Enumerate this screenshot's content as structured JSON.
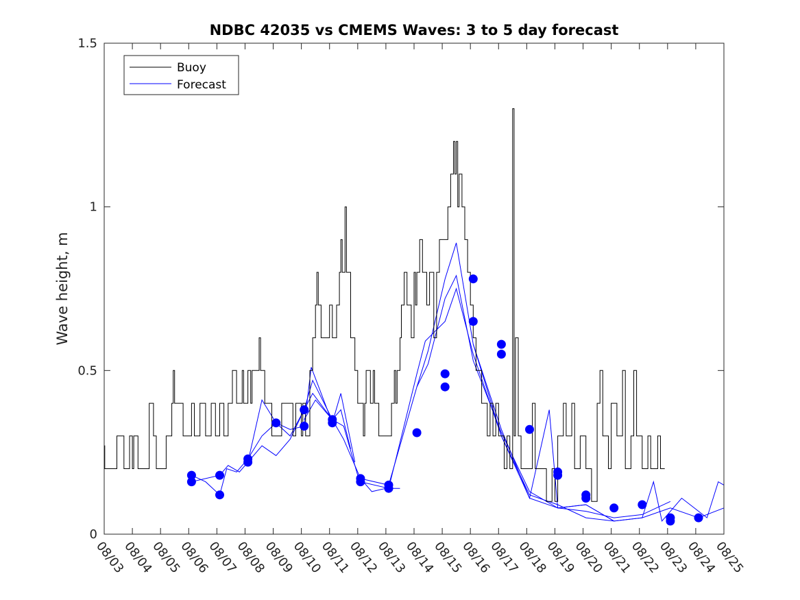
{
  "chart_data": {
    "type": "line",
    "title": "NDBC 42035 vs CMEMS Waves: 3 to 5 day forecast",
    "xlabel": "",
    "ylabel": "Wave height, m",
    "xlim": [
      0,
      22
    ],
    "ylim": [
      0,
      1.5
    ],
    "grid": false,
    "legend_position": "top-left",
    "x_tick_labels": [
      "08/03",
      "08/04",
      "08/05",
      "08/06",
      "08/07",
      "08/08",
      "08/09",
      "08/10",
      "08/11",
      "08/12",
      "08/13",
      "08/14",
      "08/15",
      "08/16",
      "08/17",
      "08/18",
      "08/19",
      "08/20",
      "08/21",
      "08/22",
      "08/23",
      "08/24",
      "08/25"
    ],
    "y_ticks": [
      0,
      0.5,
      1,
      1.5
    ],
    "y_tick_labels": [
      "0",
      "0.5",
      "1",
      "1.5"
    ],
    "legend": [
      {
        "name": "Buoy",
        "color": "#000000"
      },
      {
        "name": "Forecast",
        "color": "#0000ff"
      }
    ],
    "series": [
      {
        "name": "Buoy",
        "color": "#000000",
        "step": true,
        "points": [
          [
            0,
            0.27
          ],
          [
            0.02,
            0.2
          ],
          [
            0.35,
            0.2
          ],
          [
            0.45,
            0.3
          ],
          [
            0.7,
            0.2
          ],
          [
            0.9,
            0.3
          ],
          [
            1.0,
            0.2
          ],
          [
            1.05,
            0.3
          ],
          [
            1.2,
            0.2
          ],
          [
            1.6,
            0.4
          ],
          [
            1.75,
            0.3
          ],
          [
            1.85,
            0.2
          ],
          [
            2.2,
            0.3
          ],
          [
            2.4,
            0.4
          ],
          [
            2.45,
            0.5
          ],
          [
            2.5,
            0.4
          ],
          [
            2.8,
            0.3
          ],
          [
            3.1,
            0.4
          ],
          [
            3.2,
            0.3
          ],
          [
            3.4,
            0.4
          ],
          [
            3.6,
            0.3
          ],
          [
            3.8,
            0.4
          ],
          [
            3.95,
            0.3
          ],
          [
            4.1,
            0.4
          ],
          [
            4.25,
            0.3
          ],
          [
            4.4,
            0.4
          ],
          [
            4.55,
            0.5
          ],
          [
            4.7,
            0.4
          ],
          [
            4.9,
            0.5
          ],
          [
            4.95,
            0.4
          ],
          [
            5.1,
            0.5
          ],
          [
            5.2,
            0.4
          ],
          [
            5.25,
            0.5
          ],
          [
            5.4,
            0.5
          ],
          [
            5.5,
            0.6
          ],
          [
            5.55,
            0.5
          ],
          [
            5.7,
            0.4
          ],
          [
            5.95,
            0.3
          ],
          [
            6.3,
            0.4
          ],
          [
            6.7,
            0.3
          ],
          [
            6.8,
            0.4
          ],
          [
            7.0,
            0.3
          ],
          [
            7.05,
            0.4
          ],
          [
            7.15,
            0.3
          ],
          [
            7.3,
            0.5
          ],
          [
            7.4,
            0.6
          ],
          [
            7.5,
            0.7
          ],
          [
            7.55,
            0.8
          ],
          [
            7.6,
            0.7
          ],
          [
            7.7,
            0.6
          ],
          [
            8.0,
            0.7
          ],
          [
            8.1,
            0.6
          ],
          [
            8.25,
            0.7
          ],
          [
            8.35,
            0.8
          ],
          [
            8.4,
            0.9
          ],
          [
            8.45,
            0.8
          ],
          [
            8.55,
            1.0
          ],
          [
            8.6,
            0.8
          ],
          [
            8.75,
            0.6
          ],
          [
            8.9,
            0.5
          ],
          [
            9.0,
            0.4
          ],
          [
            9.2,
            0.3
          ],
          [
            9.25,
            0.4
          ],
          [
            9.3,
            0.5
          ],
          [
            9.45,
            0.4
          ],
          [
            9.55,
            0.5
          ],
          [
            9.6,
            0.4
          ],
          [
            9.75,
            0.3
          ],
          [
            10.0,
            0.3
          ],
          [
            10.2,
            0.4
          ],
          [
            10.3,
            0.5
          ],
          [
            10.35,
            0.4
          ],
          [
            10.4,
            0.5
          ],
          [
            10.5,
            0.6
          ],
          [
            10.55,
            0.7
          ],
          [
            10.65,
            0.8
          ],
          [
            10.75,
            0.7
          ],
          [
            10.9,
            0.6
          ],
          [
            11.0,
            0.8
          ],
          [
            11.05,
            0.7
          ],
          [
            11.1,
            0.8
          ],
          [
            11.2,
            0.9
          ],
          [
            11.3,
            0.8
          ],
          [
            11.45,
            0.7
          ],
          [
            11.55,
            0.8
          ],
          [
            11.7,
            0.6
          ],
          [
            11.8,
            0.8
          ],
          [
            11.9,
            0.9
          ],
          [
            12.0,
            0.9
          ],
          [
            12.1,
            0.9
          ],
          [
            12.2,
            1.0
          ],
          [
            12.3,
            1.1
          ],
          [
            12.4,
            1.2
          ],
          [
            12.45,
            1.1
          ],
          [
            12.5,
            1.2
          ],
          [
            12.55,
            1.0
          ],
          [
            12.6,
            1.1
          ],
          [
            12.7,
            1.0
          ],
          [
            12.8,
            0.9
          ],
          [
            12.9,
            0.8
          ],
          [
            13.0,
            0.7
          ],
          [
            13.1,
            0.6
          ],
          [
            13.2,
            0.5
          ],
          [
            13.4,
            0.4
          ],
          [
            13.6,
            0.3
          ],
          [
            13.7,
            0.4
          ],
          [
            13.8,
            0.3
          ],
          [
            13.9,
            0.4
          ],
          [
            14.0,
            0.3
          ],
          [
            14.2,
            0.2
          ],
          [
            14.3,
            0.3
          ],
          [
            14.4,
            0.2
          ],
          [
            14.5,
            1.3
          ],
          [
            14.55,
            0.3
          ],
          [
            14.6,
            0.6
          ],
          [
            14.7,
            0.3
          ],
          [
            14.8,
            0.2
          ],
          [
            15.2,
            0.4
          ],
          [
            15.3,
            0.2
          ],
          [
            15.6,
            0.2
          ],
          [
            15.7,
            0.1
          ],
          [
            15.9,
            0.2
          ],
          [
            16.0,
            0.1
          ],
          [
            16.1,
            0.3
          ],
          [
            16.3,
            0.4
          ],
          [
            16.4,
            0.3
          ],
          [
            16.6,
            0.4
          ],
          [
            16.7,
            0.2
          ],
          [
            16.9,
            0.3
          ],
          [
            17.1,
            0.2
          ],
          [
            17.3,
            0.1
          ],
          [
            17.5,
            0.4
          ],
          [
            17.6,
            0.5
          ],
          [
            17.7,
            0.3
          ],
          [
            17.9,
            0.2
          ],
          [
            18.0,
            0.4
          ],
          [
            18.2,
            0.3
          ],
          [
            18.4,
            0.5
          ],
          [
            18.5,
            0.2
          ],
          [
            18.7,
            0.3
          ],
          [
            18.8,
            0.5
          ],
          [
            18.9,
            0.3
          ],
          [
            19.1,
            0.2
          ],
          [
            19.3,
            0.3
          ],
          [
            19.4,
            0.2
          ],
          [
            19.5,
            0.2
          ],
          [
            19.65,
            0.3
          ],
          [
            19.75,
            0.2
          ],
          [
            19.9,
            0.2
          ]
        ]
      },
      {
        "name": "Forecast",
        "color": "#0000ff",
        "runs": [
          [
            [
              3.1,
              0.18
            ],
            [
              3.6,
              0.16
            ],
            [
              4.1,
              0.12
            ],
            [
              4.35,
              0.2
            ],
            [
              4.7,
              0.19
            ],
            [
              5.1,
              0.23
            ],
            [
              5.6,
              0.3
            ],
            [
              6.1,
              0.34
            ],
            [
              6.6,
              0.3
            ],
            [
              7.1,
              0.38
            ],
            [
              7.4,
              0.47
            ],
            [
              8.1,
              0.35
            ],
            [
              8.4,
              0.38
            ],
            [
              8.75,
              0.26
            ]
          ],
          [
            [
              3.1,
              0.16
            ],
            [
              4.1,
              0.18
            ],
            [
              4.4,
              0.21
            ],
            [
              4.8,
              0.19
            ],
            [
              5.1,
              0.22
            ],
            [
              5.6,
              0.41
            ],
            [
              6.1,
              0.34
            ],
            [
              6.6,
              0.32
            ],
            [
              7.1,
              0.33
            ],
            [
              7.35,
              0.51
            ],
            [
              8.1,
              0.34
            ],
            [
              8.4,
              0.43
            ],
            [
              8.9,
              0.22
            ]
          ],
          [
            [
              5.1,
              0.22
            ],
            [
              5.6,
              0.27
            ],
            [
              6.1,
              0.24
            ],
            [
              6.6,
              0.29
            ],
            [
              7.1,
              0.38
            ],
            [
              7.4,
              0.43
            ],
            [
              8.1,
              0.35
            ],
            [
              8.5,
              0.33
            ],
            [
              9.0,
              0.18
            ],
            [
              9.5,
              0.13
            ],
            [
              10.0,
              0.14
            ],
            [
              10.5,
              0.14
            ]
          ],
          [
            [
              7.1,
              0.35
            ],
            [
              7.5,
              0.41
            ],
            [
              8.1,
              0.35
            ],
            [
              8.5,
              0.29
            ],
            [
              9.1,
              0.17
            ],
            [
              10.1,
              0.15
            ],
            [
              11.1,
              0.45
            ],
            [
              11.5,
              0.56
            ],
            [
              12.1,
              0.78
            ],
            [
              12.5,
              0.89
            ],
            [
              13.1,
              0.58
            ],
            [
              14.1,
              0.3
            ],
            [
              15.1,
              0.11
            ]
          ],
          [
            [
              9.1,
              0.16
            ],
            [
              10.1,
              0.14
            ],
            [
              11.1,
              0.49
            ],
            [
              11.4,
              0.59
            ],
            [
              12.1,
              0.65
            ],
            [
              12.5,
              0.75
            ],
            [
              13.1,
              0.55
            ],
            [
              14.1,
              0.3
            ],
            [
              15.1,
              0.12
            ],
            [
              16.1,
              0.09
            ],
            [
              17.1,
              0.05
            ],
            [
              18.1,
              0.04
            ]
          ],
          [
            [
              11.1,
              0.45
            ],
            [
              11.5,
              0.52
            ],
            [
              12.1,
              0.72
            ],
            [
              12.5,
              0.79
            ],
            [
              13.1,
              0.53
            ],
            [
              14.1,
              0.31
            ],
            [
              15.1,
              0.13
            ],
            [
              16.1,
              0.08
            ],
            [
              17.1,
              0.07
            ],
            [
              18.1,
              0.05
            ],
            [
              19.1,
              0.06
            ],
            [
              20.1,
              0.1
            ]
          ],
          [
            [
              13.1,
              0.58
            ],
            [
              14.1,
              0.32
            ],
            [
              15.1,
              0.11
            ],
            [
              15.8,
              0.38
            ],
            [
              16.1,
              0.08
            ],
            [
              17.1,
              0.09
            ],
            [
              18.1,
              0.04
            ],
            [
              19.1,
              0.05
            ],
            [
              19.5,
              0.16
            ],
            [
              19.8,
              0.04
            ],
            [
              20.5,
              0.11
            ],
            [
              21.4,
              0.05
            ],
            [
              21.8,
              0.16
            ],
            [
              22,
              0.15
            ]
          ],
          [
            [
              15.1,
              0.11
            ],
            [
              16.1,
              0.08
            ],
            [
              17.1,
              0.09
            ],
            [
              18.1,
              0.04
            ],
            [
              19.1,
              0.05
            ],
            [
              20.1,
              0.08
            ],
            [
              21.1,
              0.05
            ],
            [
              22,
              0.08
            ]
          ]
        ],
        "markers": [
          [
            3.1,
            0.18
          ],
          [
            3.1,
            0.16
          ],
          [
            4.1,
            0.18
          ],
          [
            4.1,
            0.12
          ],
          [
            5.1,
            0.23
          ],
          [
            5.1,
            0.22
          ],
          [
            6.1,
            0.34
          ],
          [
            7.1,
            0.38
          ],
          [
            7.1,
            0.33
          ],
          [
            8.1,
            0.35
          ],
          [
            8.1,
            0.34
          ],
          [
            9.1,
            0.17
          ],
          [
            9.1,
            0.16
          ],
          [
            10.1,
            0.15
          ],
          [
            10.1,
            0.14
          ],
          [
            11.1,
            0.31
          ],
          [
            12.1,
            0.49
          ],
          [
            12.1,
            0.45
          ],
          [
            13.1,
            0.78
          ],
          [
            13.1,
            0.65
          ],
          [
            14.1,
            0.58
          ],
          [
            14.1,
            0.55
          ],
          [
            15.1,
            0.32
          ],
          [
            16.1,
            0.19
          ],
          [
            16.1,
            0.18
          ],
          [
            17.1,
            0.12
          ],
          [
            17.1,
            0.11
          ],
          [
            18.1,
            0.08
          ],
          [
            19.1,
            0.09
          ],
          [
            20.1,
            0.05
          ],
          [
            20.1,
            0.04
          ],
          [
            21.1,
            0.05
          ]
        ]
      }
    ]
  }
}
